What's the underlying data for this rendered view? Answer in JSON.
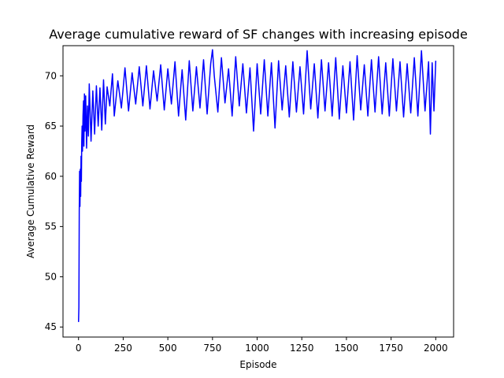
{
  "chart_data": {
    "type": "line",
    "title": "Average cumulative reward of SF changes with increasing episode",
    "xlabel": "Episode",
    "ylabel": "Average Cumulative Reward",
    "xlim": [
      -87,
      2100
    ],
    "ylim": [
      44.0,
      73.0
    ],
    "xticks": [
      0,
      250,
      500,
      750,
      1000,
      1250,
      1500,
      1750,
      2000
    ],
    "yticks": [
      45,
      50,
      55,
      60,
      65,
      70
    ],
    "grid": false,
    "legend": "none",
    "series": [
      {
        "color": "#0000ff",
        "x": [
          0,
          2,
          4,
          6,
          8,
          10,
          12,
          14,
          16,
          18,
          20,
          22,
          25,
          28,
          30,
          33,
          36,
          40,
          45,
          50,
          55,
          60,
          70,
          80,
          90,
          100,
          110,
          120,
          130,
          140,
          150,
          160,
          175,
          190,
          200,
          220,
          240,
          260,
          280,
          300,
          320,
          340,
          360,
          380,
          400,
          420,
          440,
          460,
          480,
          500,
          520,
          540,
          560,
          580,
          600,
          620,
          640,
          660,
          680,
          700,
          720,
          740,
          750,
          760,
          780,
          800,
          820,
          840,
          860,
          880,
          900,
          920,
          940,
          960,
          980,
          1000,
          1020,
          1040,
          1060,
          1080,
          1100,
          1120,
          1140,
          1160,
          1180,
          1200,
          1220,
          1240,
          1260,
          1280,
          1300,
          1320,
          1340,
          1360,
          1380,
          1400,
          1420,
          1440,
          1460,
          1480,
          1500,
          1520,
          1540,
          1560,
          1580,
          1600,
          1620,
          1640,
          1660,
          1680,
          1700,
          1720,
          1740,
          1760,
          1780,
          1800,
          1820,
          1840,
          1860,
          1880,
          1900,
          1920,
          1940,
          1960,
          1970,
          1980,
          1990,
          2000
        ],
        "y": [
          45.5,
          47.0,
          56.5,
          60.5,
          57.0,
          60.7,
          58.0,
          62.0,
          59.5,
          63.5,
          65.0,
          62.5,
          66.0,
          67.5,
          63.0,
          68.2,
          64.5,
          68.0,
          62.8,
          67.0,
          64.0,
          69.2,
          63.5,
          68.5,
          64.2,
          69.0,
          65.0,
          68.8,
          64.6,
          69.6,
          65.2,
          68.9,
          67.0,
          70.2,
          66.0,
          69.5,
          66.8,
          70.8,
          66.5,
          70.3,
          67.2,
          70.9,
          67.0,
          71.0,
          66.7,
          70.5,
          67.5,
          71.1,
          66.6,
          70.7,
          67.2,
          71.4,
          66.0,
          70.6,
          65.6,
          71.5,
          66.5,
          70.9,
          66.8,
          71.6,
          66.2,
          71.2,
          72.6,
          70.0,
          66.4,
          71.8,
          67.3,
          70.7,
          66.0,
          71.9,
          67.0,
          71.2,
          66.3,
          70.8,
          64.5,
          71.2,
          66.2,
          71.6,
          66.0,
          71.3,
          64.8,
          71.5,
          66.6,
          71.0,
          65.9,
          71.4,
          66.4,
          70.9,
          66.2,
          72.5,
          66.7,
          71.2,
          65.8,
          71.6,
          66.5,
          71.3,
          66.0,
          71.8,
          65.7,
          71.0,
          66.3,
          71.4,
          65.6,
          72.0,
          66.6,
          71.1,
          66.0,
          71.6,
          66.4,
          71.9,
          66.2,
          71.3,
          66.0,
          71.7,
          66.5,
          71.4,
          65.9,
          71.2,
          66.3,
          71.8,
          66.0,
          72.5,
          66.5,
          71.4,
          64.2,
          71.3,
          66.5,
          71.5
        ]
      }
    ]
  }
}
